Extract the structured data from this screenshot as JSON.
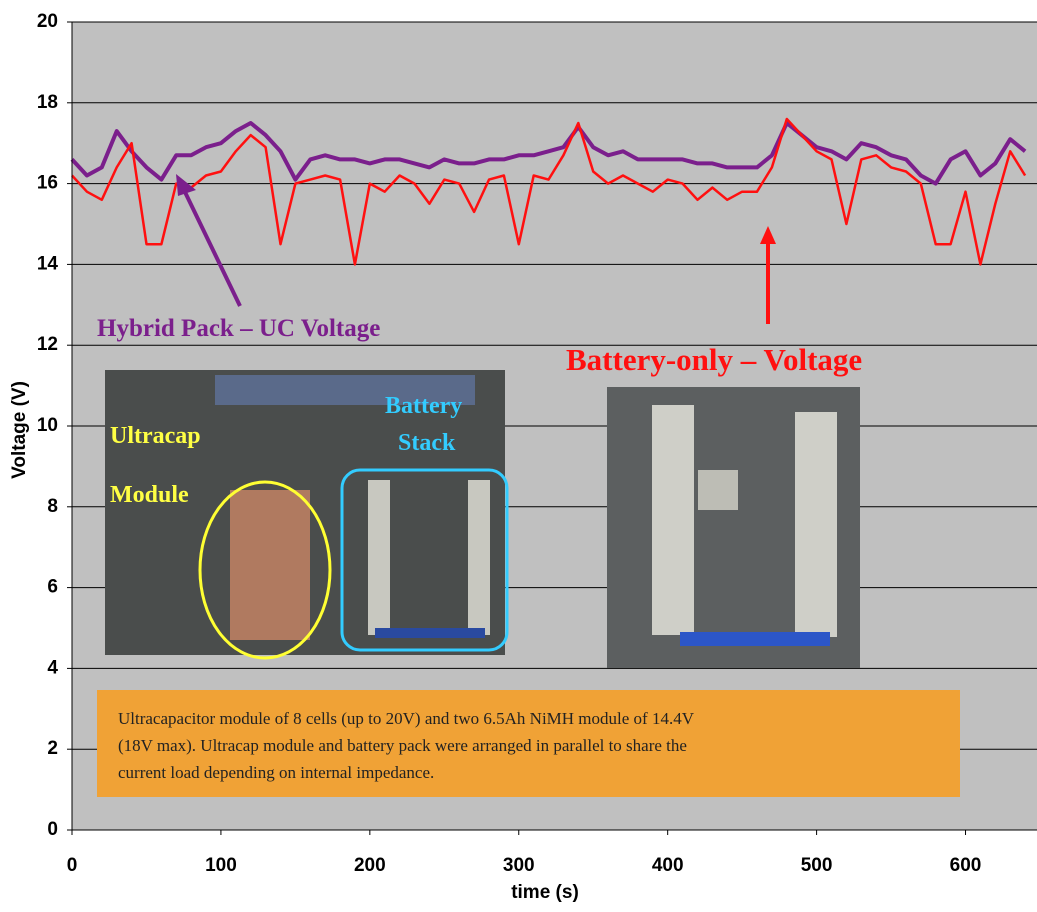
{
  "chart_data": {
    "type": "line",
    "x_label": "time (s)",
    "y_label": "Voltage (V)",
    "x": [
      0,
      10,
      20,
      30,
      40,
      50,
      60,
      70,
      80,
      90,
      100,
      110,
      120,
      130,
      140,
      150,
      160,
      170,
      180,
      190,
      200,
      210,
      220,
      230,
      240,
      250,
      260,
      270,
      280,
      290,
      300,
      310,
      320,
      330,
      340,
      350,
      360,
      370,
      380,
      390,
      400,
      410,
      420,
      430,
      440,
      450,
      460,
      470,
      480,
      490,
      500,
      510,
      520,
      530,
      540,
      550,
      560,
      570,
      580,
      590,
      600,
      610,
      620,
      630,
      640
    ],
    "series": [
      {
        "name": "Hybrid Pack – UC Voltage",
        "color": "#7b1f8c",
        "values": [
          16.6,
          16.2,
          16.4,
          17.3,
          16.8,
          16.4,
          16.1,
          16.7,
          16.7,
          16.9,
          17.0,
          17.3,
          17.5,
          17.2,
          16.8,
          16.1,
          16.6,
          16.7,
          16.6,
          16.6,
          16.5,
          16.6,
          16.6,
          16.5,
          16.4,
          16.6,
          16.5,
          16.5,
          16.6,
          16.6,
          16.7,
          16.7,
          16.8,
          16.9,
          17.4,
          16.9,
          16.7,
          16.8,
          16.6,
          16.6,
          16.6,
          16.6,
          16.5,
          16.5,
          16.4,
          16.4,
          16.4,
          16.7,
          17.5,
          17.2,
          16.9,
          16.8,
          16.6,
          17.0,
          16.9,
          16.7,
          16.6,
          16.2,
          16.0,
          16.6,
          16.8,
          16.2,
          16.5,
          17.1,
          16.8
        ]
      },
      {
        "name": "Battery-only – Voltage",
        "color": "#ff1010",
        "values": [
          16.2,
          15.8,
          15.6,
          16.4,
          17.0,
          14.5,
          14.5,
          16.0,
          15.9,
          16.2,
          16.3,
          16.8,
          17.2,
          16.9,
          14.5,
          16.0,
          16.1,
          16.2,
          16.1,
          14.0,
          16.0,
          15.8,
          16.2,
          16.0,
          15.5,
          16.1,
          16.0,
          15.3,
          16.1,
          16.2,
          14.5,
          16.2,
          16.1,
          16.7,
          17.5,
          16.3,
          16.0,
          16.2,
          16.0,
          15.8,
          16.1,
          16.0,
          15.6,
          15.9,
          15.6,
          15.8,
          15.8,
          16.4,
          17.6,
          17.2,
          16.8,
          16.6,
          15.0,
          16.6,
          16.7,
          16.4,
          16.3,
          16.0,
          14.5,
          14.5,
          15.8,
          14.0,
          15.5,
          16.8,
          16.2
        ]
      }
    ],
    "xlim": [
      0,
      648
    ],
    "ylim": [
      0,
      20
    ],
    "xticks": [
      0,
      100,
      200,
      300,
      400,
      500,
      600
    ],
    "yticks": [
      0,
      2,
      4,
      6,
      8,
      10,
      12,
      14,
      16,
      18,
      20
    ],
    "grid": true,
    "photo_labels": {
      "ultracap": [
        "Ultracap",
        "Module"
      ],
      "battery": [
        "Battery",
        "Stack"
      ]
    },
    "note": [
      "Ultracapacitor module of 8 cells (up to 20V) and two 6.5Ah NiMH module of 14.4V",
      "(18V max). Ultracap module and battery pack were arranged in parallel to share the",
      "current load depending on internal impedance."
    ]
  }
}
